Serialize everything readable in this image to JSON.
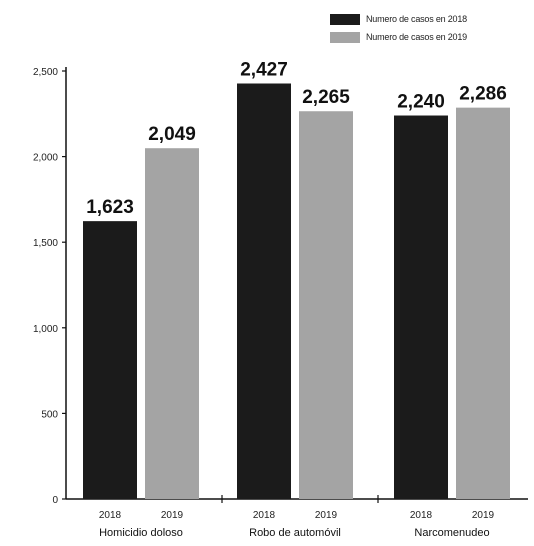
{
  "chart_data": {
    "type": "bar",
    "title": "",
    "xlabel": "",
    "ylabel": "",
    "ylim": [
      0,
      2500
    ],
    "yticks": [
      0,
      500,
      1000,
      1500,
      2000,
      2500
    ],
    "ytick_labels": [
      "0",
      "500",
      "1,000",
      "1,500",
      "2,000",
      "2,500"
    ],
    "grid": false,
    "legend_position": "top-right",
    "groups": [
      {
        "label": "Homicidio doloso",
        "bars": [
          {
            "year": "2018",
            "value": 1623,
            "value_label": "1,623"
          },
          {
            "year": "2019",
            "value": 2049,
            "value_label": "2,049"
          }
        ]
      },
      {
        "label": "Robo de automóvil",
        "bars": [
          {
            "year": "2018",
            "value": 2427,
            "value_label": "2,427"
          },
          {
            "year": "2019",
            "value": 2265,
            "value_label": "2,265"
          }
        ]
      },
      {
        "label": "Narcomenudeo",
        "bars": [
          {
            "year": "2018",
            "value": 2240,
            "value_label": "2,240"
          },
          {
            "year": "2019",
            "value": 2286,
            "value_label": "2,286"
          }
        ]
      }
    ],
    "series": [
      {
        "name": "Numero de casos en 2018",
        "color": "#1b1b1b"
      },
      {
        "name": "Numero de casos en 2019",
        "color": "#a4a4a4"
      }
    ]
  }
}
